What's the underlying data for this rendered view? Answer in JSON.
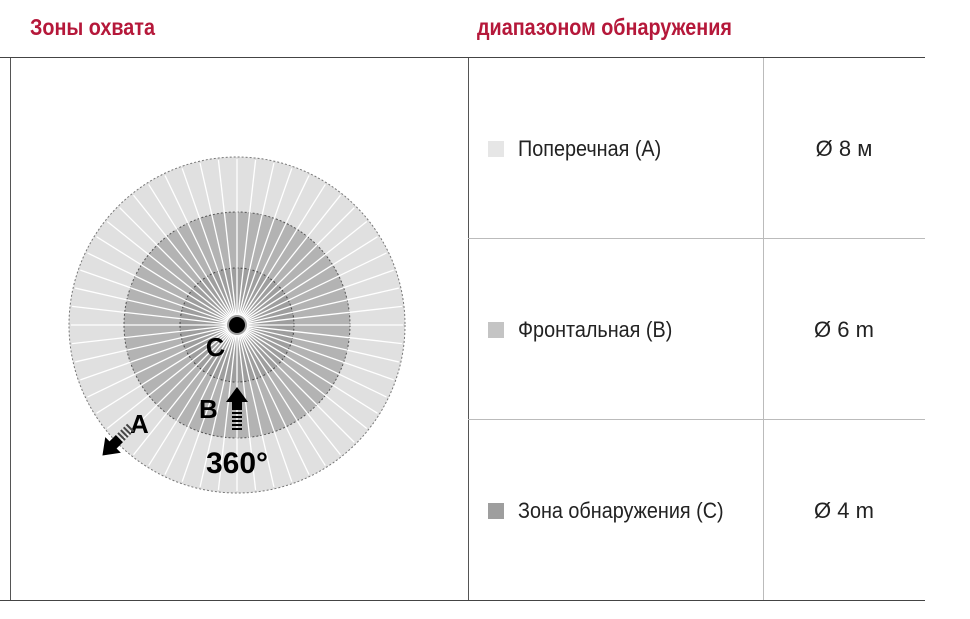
{
  "headers": {
    "left": "Зоны охвата",
    "right": "диапазоном обнаружения"
  },
  "diagram": {
    "labels": {
      "a": "A",
      "b": "B",
      "c": "C",
      "angle": "360°"
    },
    "colors": {
      "a": "#e0e0e0",
      "b": "#b3b3b3",
      "c": "#9b9b9b"
    }
  },
  "rows": [
    {
      "label": "Поперечная (A)",
      "value": "Ø 8 м",
      "color": "#e6e6e6"
    },
    {
      "label": "Фронтальная (B)",
      "value": "Ø 6 m",
      "color": "#c4c4c4"
    },
    {
      "label": "Зона обнаружения (C)",
      "value": "Ø 4 m",
      "color": "#9e9e9e"
    }
  ]
}
